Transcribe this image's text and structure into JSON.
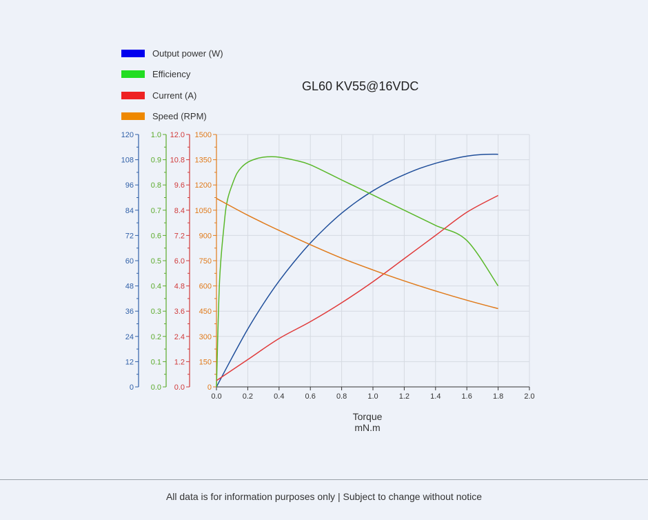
{
  "chart_data": {
    "type": "line",
    "title": "GL60 KV55@16VDC",
    "xlabel": "Torque",
    "xunit": "mN.m",
    "xlim": [
      0,
      2.0
    ],
    "xticks": [
      "0.0",
      "0.2",
      "0.4",
      "0.6",
      "0.8",
      "1.0",
      "1.2",
      "1.4",
      "1.6",
      "1.8",
      "2.0"
    ],
    "grid": true,
    "legend_position": "top-left",
    "axes": [
      {
        "id": "power",
        "color": "#3060a8",
        "ylim": [
          0,
          120
        ],
        "ticks": [
          "0",
          "12",
          "24",
          "36",
          "48",
          "60",
          "72",
          "84",
          "96",
          "108",
          "120"
        ]
      },
      {
        "id": "efficiency",
        "color": "#5aaa2a",
        "ylim": [
          0,
          1.0
        ],
        "ticks": [
          "0.0",
          "0.1",
          "0.2",
          "0.3",
          "0.4",
          "0.5",
          "0.6",
          "0.7",
          "0.8",
          "0.9",
          "1.0"
        ]
      },
      {
        "id": "current",
        "color": "#d03a3a",
        "ylim": [
          0,
          12.0
        ],
        "ticks": [
          "0.0",
          "1.2",
          "2.4",
          "3.6",
          "4.8",
          "6.0",
          "7.2",
          "8.4",
          "9.6",
          "10.8",
          "12.0"
        ]
      },
      {
        "id": "speed",
        "color": "#e07a1a",
        "ylim": [
          0,
          1500
        ],
        "ticks": [
          "0",
          "150",
          "300",
          "450",
          "600",
          "750",
          "900",
          "1050",
          "1200",
          "1350",
          "1500"
        ]
      }
    ],
    "series": [
      {
        "name": "Output power (W)",
        "axis": "power",
        "color": "#1f4e9a",
        "legend_color": "#0000ee",
        "x": [
          0,
          0.1,
          0.2,
          0.3,
          0.4,
          0.5,
          0.6,
          0.7,
          0.8,
          0.9,
          1.0,
          1.1,
          1.2,
          1.3,
          1.4,
          1.5,
          1.6,
          1.7,
          1.8
        ],
        "y": [
          0,
          14,
          27.5,
          39.5,
          50.3,
          59.8,
          68.4,
          75.9,
          82.6,
          88.3,
          93.2,
          97.4,
          100.9,
          103.9,
          106.3,
          108.2,
          109.7,
          110.5,
          110.6
        ]
      },
      {
        "name": "Efficiency",
        "axis": "efficiency",
        "color": "#5ab82a",
        "legend_color": "#22dd22",
        "x": [
          0,
          0.02,
          0.05,
          0.07,
          0.1,
          0.13,
          0.16,
          0.2,
          0.25,
          0.3,
          0.35,
          0.4,
          0.5,
          0.6,
          0.8,
          1.0,
          1.2,
          1.4,
          1.6,
          1.8
        ],
        "y": [
          0,
          0.42,
          0.65,
          0.74,
          0.8,
          0.845,
          0.87,
          0.89,
          0.903,
          0.91,
          0.912,
          0.91,
          0.898,
          0.88,
          0.82,
          0.76,
          0.7,
          0.64,
          0.58,
          0.4
        ]
      },
      {
        "name": "Current (A)",
        "axis": "current",
        "color": "#e03a3a",
        "legend_color": "#ee2222",
        "x": [
          0,
          0.2,
          0.4,
          0.6,
          0.8,
          1.0,
          1.2,
          1.4,
          1.6,
          1.8
        ],
        "y": [
          0.3,
          1.3,
          2.3,
          3.1,
          4.0,
          5.0,
          6.1,
          7.2,
          8.3,
          9.1
        ]
      },
      {
        "name": "Speed (RPM)",
        "axis": "speed",
        "color": "#e07a1a",
        "legend_color": "#ee8800",
        "x": [
          0,
          0.2,
          0.4,
          0.6,
          0.8,
          1.0,
          1.2,
          1.4,
          1.6,
          1.8
        ],
        "y": [
          1120,
          1020,
          930,
          845,
          765,
          695,
          630,
          570,
          515,
          465
        ]
      }
    ]
  },
  "footer": {
    "text": "All data is for information purposes only | Subject to change without notice"
  }
}
